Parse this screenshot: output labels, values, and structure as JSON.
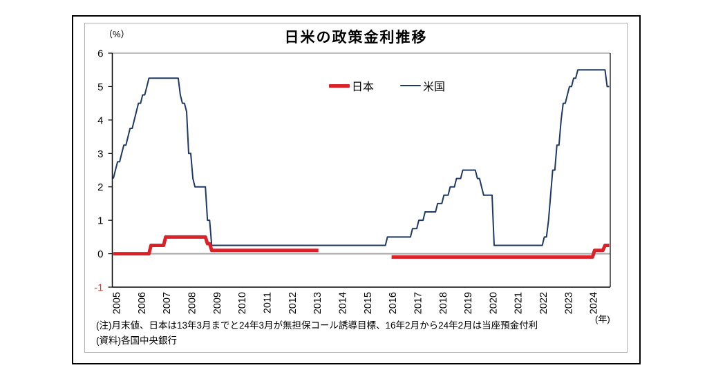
{
  "chart_data": {
    "type": "line",
    "title": "日米の政策金利推移",
    "y_unit_label": "（%）",
    "x_unit_label": "(年)",
    "ylim": [
      -1,
      6
    ],
    "yticks": [
      6,
      5,
      4,
      3,
      2,
      1,
      0,
      -1
    ],
    "x_range": {
      "start": "2005-01",
      "end": "2024-10"
    },
    "x_tick_years": [
      2005,
      2006,
      2007,
      2008,
      2009,
      2010,
      2011,
      2012,
      2013,
      2014,
      2015,
      2016,
      2017,
      2018,
      2019,
      2020,
      2021,
      2022,
      2023,
      2024
    ],
    "grid": {
      "zero_line": true,
      "gridlines": false
    },
    "legend_position": "top-center",
    "palette": {
      "japan_red": "#da2128",
      "us_navy": "#1f3864",
      "zero_line_gray": "#a6a6a6",
      "axis_black": "#000000",
      "plot_top_border_gray": "#999999",
      "negative_label_red": "#e03434"
    },
    "series": [
      {
        "key": "us",
        "name": "米国",
        "color": "#1f3864",
        "line_width": 2,
        "segments": [
          {
            "from": "2005-01",
            "to": "2005-01",
            "value": 2.25
          },
          {
            "from": "2005-02",
            "to": "2005-02",
            "value": 2.5
          },
          {
            "from": "2005-03",
            "to": "2005-04",
            "value": 2.75
          },
          {
            "from": "2005-05",
            "to": "2005-05",
            "value": 3.0
          },
          {
            "from": "2005-06",
            "to": "2005-07",
            "value": 3.25
          },
          {
            "from": "2005-08",
            "to": "2005-08",
            "value": 3.5
          },
          {
            "from": "2005-09",
            "to": "2005-10",
            "value": 3.75
          },
          {
            "from": "2005-11",
            "to": "2005-11",
            "value": 4.0
          },
          {
            "from": "2005-12",
            "to": "2005-12",
            "value": 4.25
          },
          {
            "from": "2006-01",
            "to": "2006-02",
            "value": 4.5
          },
          {
            "from": "2006-03",
            "to": "2006-04",
            "value": 4.75
          },
          {
            "from": "2006-05",
            "to": "2006-05",
            "value": 5.0
          },
          {
            "from": "2006-06",
            "to": "2007-08",
            "value": 5.25
          },
          {
            "from": "2007-09",
            "to": "2007-09",
            "value": 4.75
          },
          {
            "from": "2007-10",
            "to": "2007-11",
            "value": 4.5
          },
          {
            "from": "2007-12",
            "to": "2007-12",
            "value": 4.25
          },
          {
            "from": "2008-01",
            "to": "2008-02",
            "value": 3.0
          },
          {
            "from": "2008-03",
            "to": "2008-03",
            "value": 2.25
          },
          {
            "from": "2008-04",
            "to": "2008-09",
            "value": 2.0
          },
          {
            "from": "2008-10",
            "to": "2008-11",
            "value": 1.0
          },
          {
            "from": "2008-12",
            "to": "2015-11",
            "value": 0.25
          },
          {
            "from": "2015-12",
            "to": "2016-11",
            "value": 0.5
          },
          {
            "from": "2016-12",
            "to": "2017-02",
            "value": 0.75
          },
          {
            "from": "2017-03",
            "to": "2017-05",
            "value": 1.0
          },
          {
            "from": "2017-06",
            "to": "2017-11",
            "value": 1.25
          },
          {
            "from": "2017-12",
            "to": "2018-02",
            "value": 1.5
          },
          {
            "from": "2018-03",
            "to": "2018-05",
            "value": 1.75
          },
          {
            "from": "2018-06",
            "to": "2018-08",
            "value": 2.0
          },
          {
            "from": "2018-09",
            "to": "2018-11",
            "value": 2.25
          },
          {
            "from": "2018-12",
            "to": "2019-06",
            "value": 2.5
          },
          {
            "from": "2019-07",
            "to": "2019-08",
            "value": 2.25
          },
          {
            "from": "2019-09",
            "to": "2019-09",
            "value": 2.0
          },
          {
            "from": "2019-10",
            "to": "2020-02",
            "value": 1.75
          },
          {
            "from": "2020-03",
            "to": "2022-02",
            "value": 0.25
          },
          {
            "from": "2022-03",
            "to": "2022-04",
            "value": 0.5
          },
          {
            "from": "2022-05",
            "to": "2022-05",
            "value": 1.0
          },
          {
            "from": "2022-06",
            "to": "2022-06",
            "value": 1.75
          },
          {
            "from": "2022-07",
            "to": "2022-08",
            "value": 2.5
          },
          {
            "from": "2022-09",
            "to": "2022-10",
            "value": 3.25
          },
          {
            "from": "2022-11",
            "to": "2022-11",
            "value": 4.0
          },
          {
            "from": "2022-12",
            "to": "2023-01",
            "value": 4.5
          },
          {
            "from": "2023-02",
            "to": "2023-02",
            "value": 4.75
          },
          {
            "from": "2023-03",
            "to": "2023-04",
            "value": 5.0
          },
          {
            "from": "2023-05",
            "to": "2023-06",
            "value": 5.25
          },
          {
            "from": "2023-07",
            "to": "2024-08",
            "value": 5.5
          },
          {
            "from": "2024-09",
            "to": "2024-10",
            "value": 5.0
          }
        ]
      },
      {
        "key": "japan",
        "name": "日本",
        "color": "#da2128",
        "line_width": 5,
        "segments": [
          {
            "from": "2005-01",
            "to": "2006-06",
            "value": 0.0
          },
          {
            "from": "2006-07",
            "to": "2007-01",
            "value": 0.25
          },
          {
            "from": "2007-02",
            "to": "2008-09",
            "value": 0.5
          },
          {
            "from": "2008-10",
            "to": "2008-11",
            "value": 0.3
          },
          {
            "from": "2008-12",
            "to": "2013-03",
            "value": 0.1
          },
          {
            "from": "2016-02",
            "to": "2024-02",
            "value": -0.1
          },
          {
            "from": "2024-03",
            "to": "2024-07",
            "value": 0.1
          },
          {
            "from": "2024-08",
            "to": "2024-10",
            "value": 0.25
          }
        ]
      }
    ]
  },
  "notes": {
    "note": "(注)月末値、日本は13年3月までと24年3月が無担保コール誘導目標、16年2月から24年2月は当座預金付利",
    "source": "(資料)各国中央銀行"
  }
}
